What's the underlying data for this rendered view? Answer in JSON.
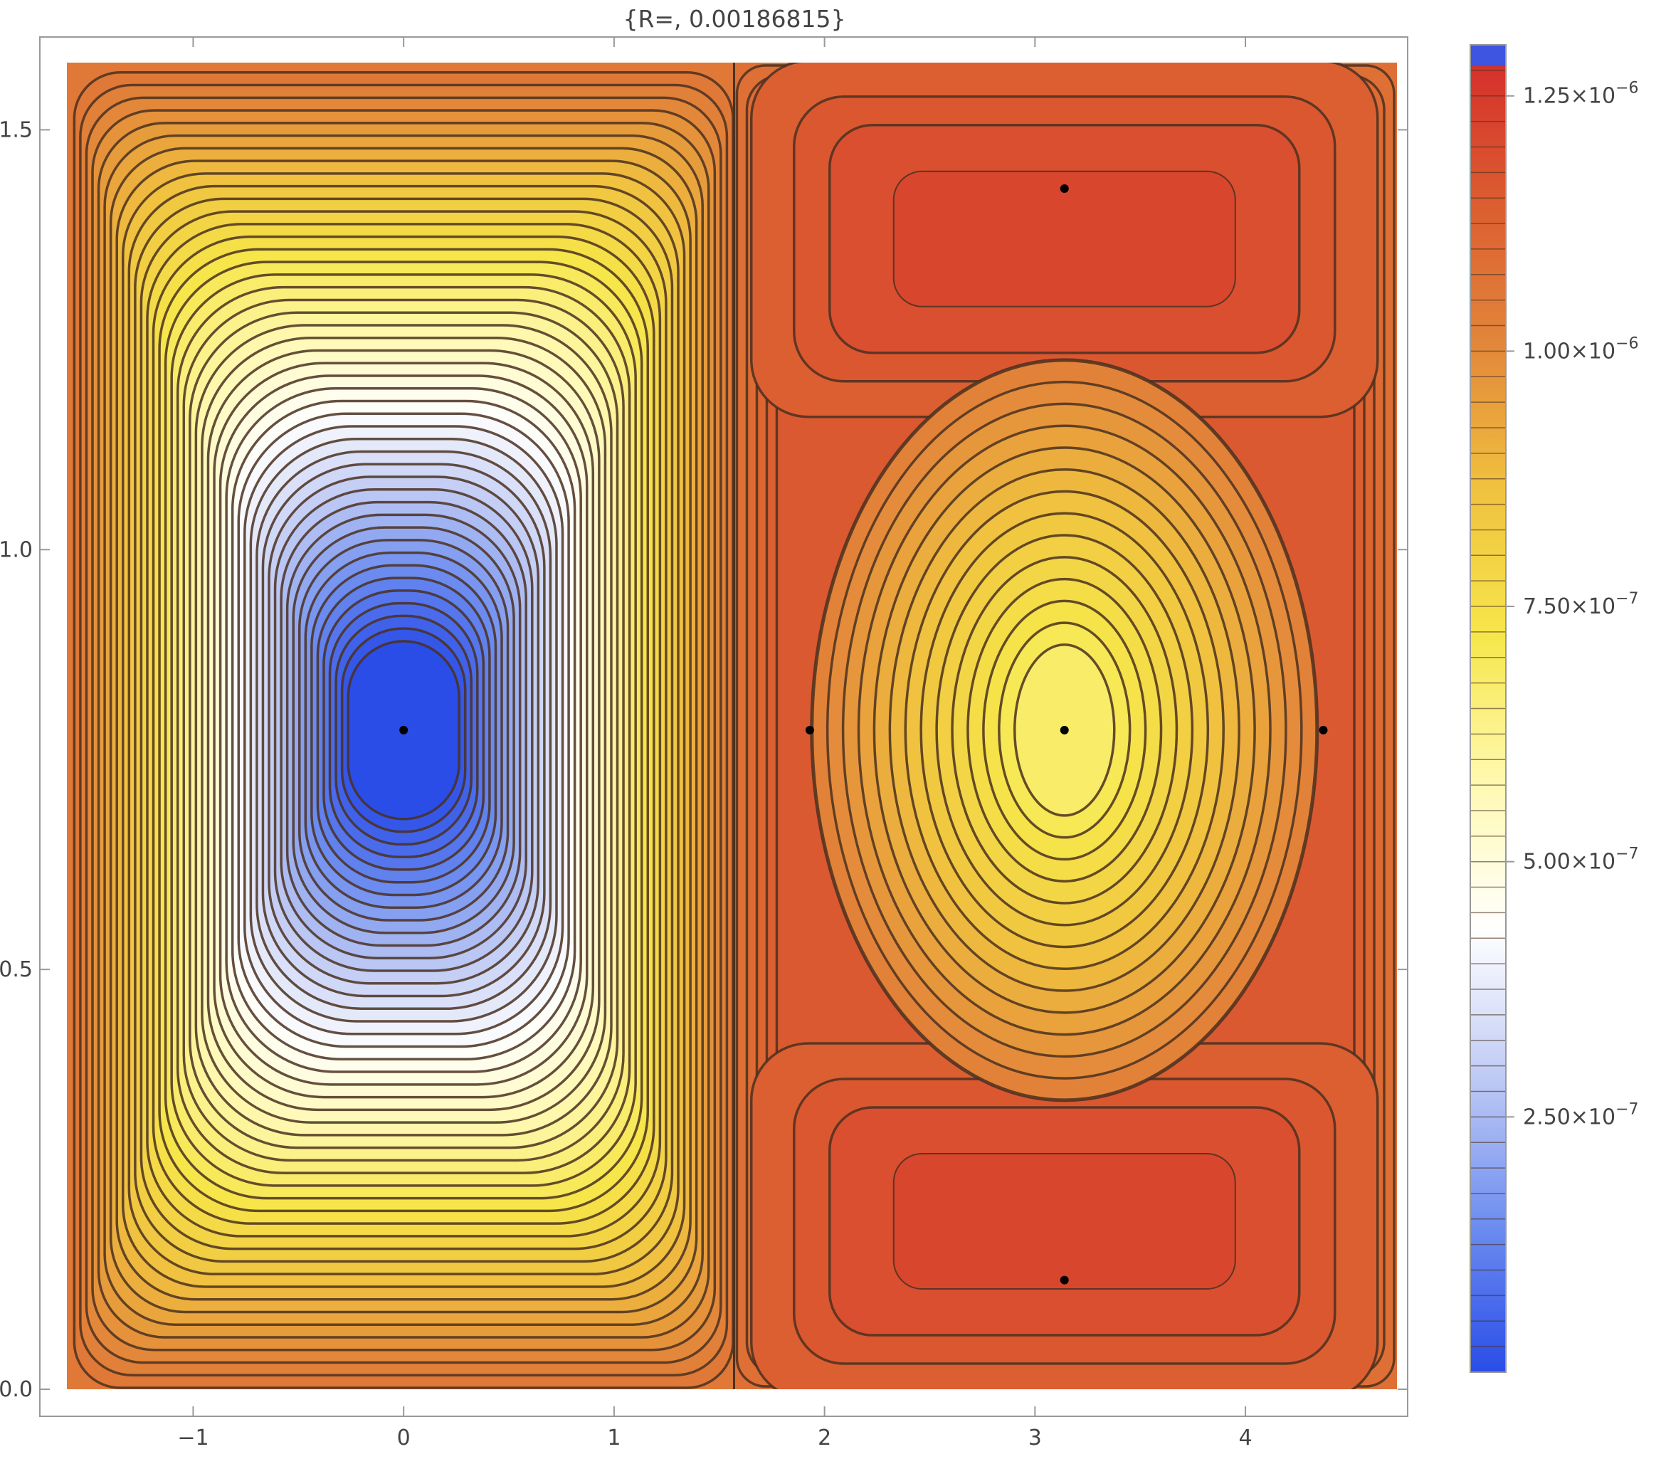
{
  "chart_data": {
    "type": "heatmap",
    "subtype": "contour",
    "title": "{R=, 0.00186815}",
    "xlabel": "",
    "ylabel": "",
    "xlim": [
      -1.6,
      4.72
    ],
    "ylim": [
      0.0,
      1.58
    ],
    "x_ticks": [
      -1,
      0,
      1,
      2,
      3,
      4
    ],
    "x_tick_labels": [
      "−1",
      "0",
      "1",
      "2",
      "3",
      "4"
    ],
    "y_ticks": [
      0.0,
      0.5,
      1.0,
      1.5
    ],
    "y_tick_labels": [
      "0.0",
      "0.5",
      "1.0",
      "1.5"
    ],
    "grid": false,
    "colorbar": {
      "placement": "right",
      "range": [
        0,
        1.3e-06
      ],
      "tick_values": [
        2.5e-07,
        5e-07,
        7.5e-07,
        1e-06,
        1.25e-06
      ],
      "tick_labels": [
        {
          "mantissa": "2.50",
          "exponent": "−7"
        },
        {
          "mantissa": "5.00",
          "exponent": "−7"
        },
        {
          "mantissa": "7.50",
          "exponent": "−7"
        },
        {
          "mantissa": "1.00",
          "exponent": "−6"
        },
        {
          "mantissa": "1.25",
          "exponent": "−6"
        }
      ],
      "colors": [
        "#2a4de8",
        "#6d8df0",
        "#bfcaf4",
        "#ffffff",
        "#fff9b0",
        "#f6e64a",
        "#f0c13f",
        "#e2853a",
        "#db5a30",
        "#d42a2a",
        "#3d55e0"
      ]
    },
    "regions": [
      {
        "name": "left-cell",
        "x_range": [
          -1.6,
          1.57
        ],
        "center": [
          0.0,
          0.785
        ],
        "center_value": 0.0,
        "edge_value": 1.05e-06
      },
      {
        "name": "right-center-cell",
        "center": [
          3.14,
          0.785
        ],
        "center_value": 6.8e-07
      },
      {
        "name": "right-top-lobe",
        "center": [
          3.14,
          1.43
        ],
        "center_value": 1.2e-06
      },
      {
        "name": "right-bottom-lobe",
        "center": [
          3.14,
          0.13
        ],
        "center_value": 1.2e-06
      }
    ],
    "critical_points": [
      {
        "x": 0.0,
        "y": 0.785,
        "kind": "center"
      },
      {
        "x": 3.14,
        "y": 0.785,
        "kind": "center"
      },
      {
        "x": 3.14,
        "y": 1.43,
        "kind": "center"
      },
      {
        "x": 3.14,
        "y": 0.13,
        "kind": "center"
      },
      {
        "x": 1.93,
        "y": 0.785,
        "kind": "saddle"
      },
      {
        "x": 4.37,
        "y": 0.785,
        "kind": "saddle"
      }
    ],
    "colors": {
      "frame": "#999999",
      "contour": "#4a3020",
      "point": "#000000"
    }
  }
}
